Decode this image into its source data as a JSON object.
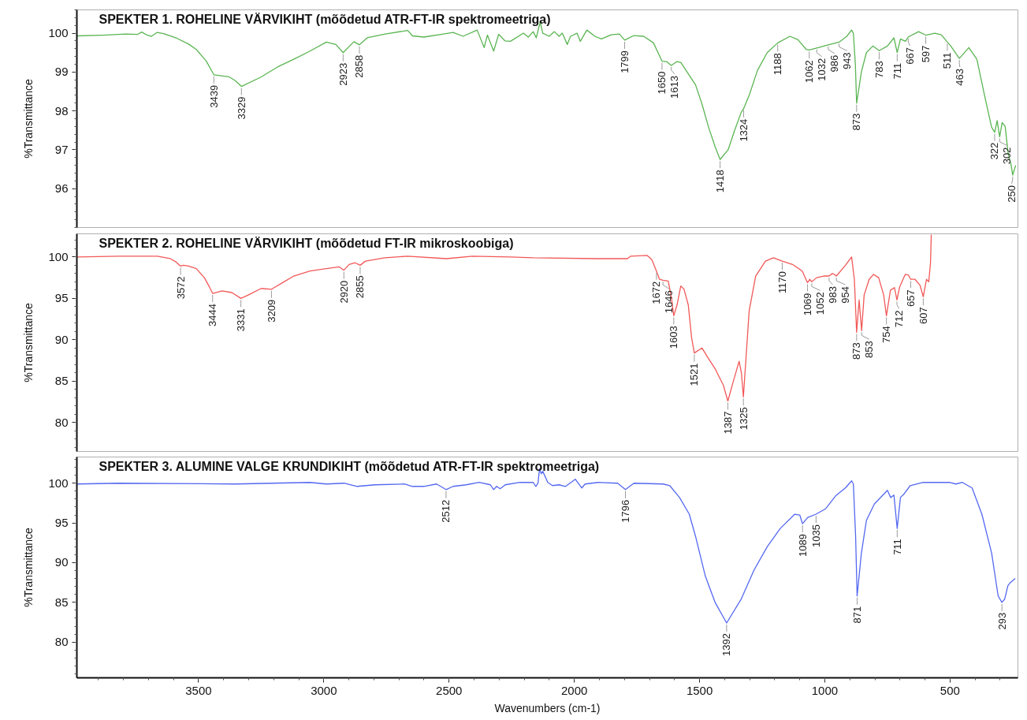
{
  "chart_data": [
    {
      "type": "line",
      "title": "SPEKTER 1. ROHELINE VÄRVIKIHT (mõõdetud ATR-FT-IR spektromeetriga)",
      "ylabel": "%Transmittance",
      "tick_labels": "y",
      "xlim": [
        3986,
        229
      ],
      "xticks": [
        3500,
        3000,
        2500,
        2000,
        1500,
        1000,
        500
      ],
      "ylim": [
        95,
        100.6
      ],
      "yticks": [
        96,
        97,
        98,
        99,
        100
      ],
      "x": [
        3986,
        3883,
        3790,
        3743,
        3727,
        3709,
        3688,
        3665,
        3640,
        3587,
        3540,
        3509,
        3470,
        3439,
        3379,
        3354,
        3329,
        3251,
        3185,
        3120,
        3055,
        2990,
        2952,
        2923,
        2880,
        2858,
        2827,
        2755,
        2665,
        2646,
        2601,
        2522,
        2484,
        2444,
        2388,
        2360,
        2347,
        2322,
        2302,
        2276,
        2255,
        2203,
        2184,
        2164,
        2152,
        2136,
        2126,
        2100,
        2080,
        2061,
        2048,
        2028,
        2015,
        1989,
        1976,
        1950,
        1918,
        1892,
        1853,
        1820,
        1799,
        1762,
        1723,
        1684,
        1662,
        1650,
        1632,
        1613,
        1590,
        1575,
        1516,
        1490,
        1464,
        1438,
        1418,
        1386,
        1360,
        1334,
        1324,
        1301,
        1269,
        1230,
        1188,
        1139,
        1107,
        1074,
        1062,
        1032,
        986,
        943,
        912,
        893,
        886,
        878,
        873,
        854,
        834,
        808,
        783,
        750,
        724,
        711,
        698,
        678,
        667,
        626,
        597,
        561,
        535,
        511,
        497,
        463,
        425,
        393,
        360,
        334,
        322,
        312,
        302,
        292,
        280,
        268,
        256,
        250,
        238
      ],
      "series": [
        {
          "color": "#5ab552",
          "values": [
            99.93,
            99.95,
            99.98,
            99.97,
            100.03,
            99.96,
            99.92,
            100.02,
            99.99,
            99.87,
            99.72,
            99.58,
            99.29,
            98.93,
            98.88,
            98.78,
            98.63,
            98.87,
            99.13,
            99.33,
            99.54,
            99.77,
            99.71,
            99.5,
            99.78,
            99.7,
            99.88,
            99.98,
            100.07,
            99.93,
            99.9,
            99.98,
            100.02,
            99.92,
            100.08,
            99.63,
            99.95,
            99.54,
            99.97,
            99.8,
            99.79,
            100.0,
            99.9,
            100.04,
            99.88,
            100.29,
            100.0,
            99.92,
            100.04,
            99.92,
            100.0,
            99.71,
            99.92,
            100.0,
            99.79,
            100.08,
            99.92,
            99.85,
            99.96,
            99.98,
            99.82,
            99.94,
            99.92,
            99.75,
            99.45,
            99.28,
            99.27,
            99.17,
            99.27,
            99.25,
            98.67,
            98.17,
            97.58,
            97.08,
            96.75,
            97.0,
            97.5,
            97.96,
            98.06,
            98.42,
            99.04,
            99.5,
            99.75,
            99.92,
            99.83,
            99.58,
            99.57,
            99.62,
            99.7,
            99.77,
            99.92,
            100.08,
            100.0,
            99.2,
            98.2,
            99.0,
            99.5,
            99.67,
            99.55,
            99.67,
            99.88,
            99.5,
            99.85,
            99.79,
            99.9,
            100.04,
            99.95,
            100.0,
            99.96,
            99.77,
            99.67,
            99.35,
            99.63,
            99.33,
            98.33,
            97.58,
            97.45,
            97.75,
            97.33,
            97.7,
            97.6,
            96.9,
            96.6,
            96.35,
            96.6
          ]
        }
      ],
      "annotations": [
        {
          "text": "3439",
          "x": 3439,
          "y": 98.93
        },
        {
          "text": "3329",
          "x": 3329,
          "y": 98.63
        },
        {
          "text": "2923",
          "x": 2923,
          "y": 99.5
        },
        {
          "text": "2858",
          "x": 2858,
          "y": 99.7
        },
        {
          "text": "1799",
          "x": 1799,
          "y": 99.82
        },
        {
          "text": "1650",
          "x": 1650,
          "y": 99.28
        },
        {
          "text": "1613",
          "x": 1613,
          "y": 99.17
        },
        {
          "text": "1418",
          "x": 1418,
          "y": 96.75
        },
        {
          "text": "1324",
          "x": 1324,
          "y": 98.06
        },
        {
          "text": "1188",
          "x": 1188,
          "y": 99.75
        },
        {
          "text": "1062",
          "x": 1062,
          "y": 99.57
        },
        {
          "text": "1032",
          "x": 1032,
          "y": 99.62
        },
        {
          "text": "986",
          "x": 986,
          "y": 99.7
        },
        {
          "text": "943",
          "x": 943,
          "y": 99.77
        },
        {
          "text": "873",
          "x": 873,
          "y": 98.2
        },
        {
          "text": "783",
          "x": 783,
          "y": 99.55
        },
        {
          "text": "711",
          "x": 711,
          "y": 99.5
        },
        {
          "text": "667",
          "x": 667,
          "y": 99.9
        },
        {
          "text": "597",
          "x": 597,
          "y": 99.95
        },
        {
          "text": "511",
          "x": 511,
          "y": 99.77
        },
        {
          "text": "463",
          "x": 463,
          "y": 99.35
        },
        {
          "text": "322",
          "x": 322,
          "y": 97.45
        },
        {
          "text": "302",
          "x": 302,
          "y": 97.33
        },
        {
          "text": "250",
          "x": 250,
          "y": 96.35
        }
      ]
    },
    {
      "type": "line",
      "title": "SPEKTER 2. ROHELINE VÄRVIKIHT (mõõdetud FT-IR mikroskoobiga)",
      "ylabel": "%Transmittance",
      "tick_labels": "y",
      "xlim": [
        3986,
        229
      ],
      "xticks": [
        3500,
        3000,
        2500,
        2000,
        1500,
        1000,
        500
      ],
      "ylim": [
        76.5,
        102.8
      ],
      "yticks": [
        80,
        85,
        90,
        95,
        100
      ],
      "x": [
        3986,
        3821,
        3665,
        3613,
        3590,
        3572,
        3560,
        3540,
        3509,
        3477,
        3457,
        3444,
        3406,
        3367,
        3331,
        3302,
        3250,
        3209,
        3159,
        3120,
        3055,
        2990,
        2938,
        2920,
        2899,
        2875,
        2855,
        2834,
        2756,
        2666,
        2510,
        2407,
        2254,
        2164,
        1905,
        1788,
        1775,
        1710,
        1691,
        1672,
        1660,
        1646,
        1625,
        1612,
        1603,
        1590,
        1575,
        1562,
        1545,
        1532,
        1521,
        1490,
        1470,
        1438,
        1405,
        1387,
        1366,
        1342,
        1333,
        1325,
        1315,
        1302,
        1276,
        1237,
        1205,
        1170,
        1129,
        1090,
        1069,
        1060,
        1052,
        1033,
        1005,
        983,
        970,
        962,
        954,
        920,
        893,
        882,
        873,
        863,
        853,
        843,
        823,
        805,
        785,
        765,
        754,
        738,
        722,
        712,
        701,
        679,
        666,
        657,
        640,
        620,
        607,
        594,
        585,
        578,
        575
      ],
      "series": [
        {
          "color": "#f25858",
          "values": [
            100.0,
            100.1,
            100.1,
            99.8,
            99.4,
            98.9,
            99.0,
            98.9,
            98.6,
            97.5,
            96.4,
            95.6,
            95.9,
            95.7,
            95.0,
            95.4,
            96.2,
            96.1,
            97.0,
            97.7,
            98.3,
            98.6,
            98.8,
            98.4,
            99.1,
            99.3,
            99.0,
            99.5,
            99.9,
            100.1,
            99.8,
            100.1,
            100.0,
            99.9,
            99.8,
            99.8,
            100.1,
            100.2,
            99.7,
            98.3,
            97.3,
            97.2,
            97.1,
            95.0,
            92.9,
            94.2,
            96.5,
            96.1,
            94.2,
            90.3,
            88.4,
            89.0,
            88.0,
            86.5,
            84.5,
            82.6,
            84.9,
            87.4,
            86.0,
            83.1,
            87.6,
            93.5,
            97.7,
            99.5,
            99.9,
            99.5,
            99.1,
            98.3,
            96.9,
            97.3,
            97.0,
            97.5,
            97.7,
            97.7,
            98.0,
            97.9,
            97.7,
            98.9,
            100.0,
            97.3,
            90.9,
            94.8,
            91.1,
            95.4,
            97.3,
            97.9,
            97.5,
            95.4,
            92.9,
            96.0,
            96.3,
            94.8,
            96.4,
            97.9,
            97.8,
            97.3,
            97.3,
            96.6,
            95.2,
            97.3,
            97.0,
            99.3,
            102.7
          ]
        }
      ],
      "annotations": [
        {
          "text": "3572",
          "x": 3572,
          "y": 98.9
        },
        {
          "text": "3444",
          "x": 3444,
          "y": 95.6
        },
        {
          "text": "3331",
          "x": 3331,
          "y": 95.0
        },
        {
          "text": "3209",
          "x": 3209,
          "y": 96.1
        },
        {
          "text": "2920",
          "x": 2920,
          "y": 98.4
        },
        {
          "text": "2855",
          "x": 2855,
          "y": 99.0
        },
        {
          "text": "1672",
          "x": 1672,
          "y": 98.3
        },
        {
          "text": "1646",
          "x": 1646,
          "y": 97.2
        },
        {
          "text": "1603",
          "x": 1603,
          "y": 92.9
        },
        {
          "text": "1521",
          "x": 1521,
          "y": 88.4
        },
        {
          "text": "1387",
          "x": 1387,
          "y": 82.6
        },
        {
          "text": "1325",
          "x": 1325,
          "y": 83.1
        },
        {
          "text": "1170",
          "x": 1170,
          "y": 99.5
        },
        {
          "text": "1069",
          "x": 1069,
          "y": 96.9
        },
        {
          "text": "1052",
          "x": 1052,
          "y": 97.0
        },
        {
          "text": "983",
          "x": 983,
          "y": 97.7
        },
        {
          "text": "954",
          "x": 954,
          "y": 97.7
        },
        {
          "text": "873",
          "x": 873,
          "y": 90.9
        },
        {
          "text": "853",
          "x": 853,
          "y": 91.1
        },
        {
          "text": "754",
          "x": 754,
          "y": 92.9
        },
        {
          "text": "712",
          "x": 712,
          "y": 94.8
        },
        {
          "text": "657",
          "x": 657,
          "y": 97.3
        },
        {
          "text": "607",
          "x": 607,
          "y": 95.2
        }
      ]
    },
    {
      "type": "line",
      "title": "SPEKTER 3. ALUMINE VALGE KRUNDIKIHT (mõõdetud ATR-FT-IR spektromeetriga)",
      "xlabel": "Wavenumbers (cm-1)",
      "ylabel": "%Transmittance",
      "xlim": [
        3986,
        229
      ],
      "xticks": [
        3500,
        3000,
        2500,
        2000,
        1500,
        1000,
        500
      ],
      "ylim": [
        75.5,
        103.3
      ],
      "yticks": [
        80,
        85,
        90,
        95,
        100
      ],
      "x": [
        3986,
        3821,
        3354,
        3055,
        2990,
        2919,
        2867,
        2796,
        2679,
        2646,
        2601,
        2550,
        2512,
        2484,
        2432,
        2380,
        2335,
        2322,
        2310,
        2296,
        2276,
        2217,
        2164,
        2154,
        2145,
        2139,
        2132,
        2126,
        2106,
        2087,
        2061,
        2035,
        1996,
        1970,
        1957,
        1905,
        1827,
        1796,
        1762,
        1645,
        1619,
        1580,
        1541,
        1516,
        1477,
        1438,
        1392,
        1334,
        1282,
        1230,
        1178,
        1120,
        1100,
        1089,
        1068,
        1035,
        996,
        957,
        918,
        893,
        886,
        877,
        871,
        854,
        834,
        802,
        750,
        737,
        724,
        711,
        698,
        685,
        659,
        607,
        503,
        477,
        451,
        412,
        373,
        334,
        308,
        293,
        282,
        269,
        259,
        240
      ],
      "series": [
        {
          "color": "#5468f0",
          "values": [
            99.9,
            100.0,
            99.9,
            100.1,
            99.9,
            100.0,
            99.6,
            99.8,
            99.9,
            99.6,
            99.6,
            99.9,
            99.2,
            99.6,
            99.8,
            100.1,
            99.8,
            99.2,
            99.6,
            99.3,
            99.8,
            100.1,
            100.1,
            99.6,
            100.0,
            101.8,
            101.2,
            101.5,
            100.1,
            99.7,
            99.8,
            99.6,
            100.5,
            99.4,
            99.9,
            100.1,
            100.0,
            99.2,
            100.0,
            99.9,
            99.7,
            98.2,
            96.1,
            93.3,
            88.3,
            85.0,
            82.4,
            85.4,
            89.1,
            92.0,
            94.3,
            96.1,
            96.0,
            94.9,
            95.7,
            96.1,
            96.8,
            98.4,
            99.4,
            100.3,
            99.9,
            93.3,
            85.8,
            91.2,
            95.3,
            97.4,
            99.1,
            98.2,
            98.5,
            94.3,
            98.2,
            98.6,
            99.7,
            100.1,
            100.1,
            99.9,
            100.1,
            99.4,
            96.1,
            91.2,
            85.8,
            85.0,
            85.4,
            87.1,
            87.5,
            88.0
          ]
        }
      ],
      "annotations": [
        {
          "text": "2512",
          "x": 2512,
          "y": 99.2
        },
        {
          "text": "1796",
          "x": 1796,
          "y": 99.2
        },
        {
          "text": "1392",
          "x": 1392,
          "y": 82.4
        },
        {
          "text": "1089",
          "x": 1089,
          "y": 94.9
        },
        {
          "text": "1035",
          "x": 1035,
          "y": 96.1
        },
        {
          "text": "871",
          "x": 871,
          "y": 85.8
        },
        {
          "text": "711",
          "x": 711,
          "y": 94.3
        },
        {
          "text": "293",
          "x": 293,
          "y": 85.0
        }
      ]
    }
  ]
}
